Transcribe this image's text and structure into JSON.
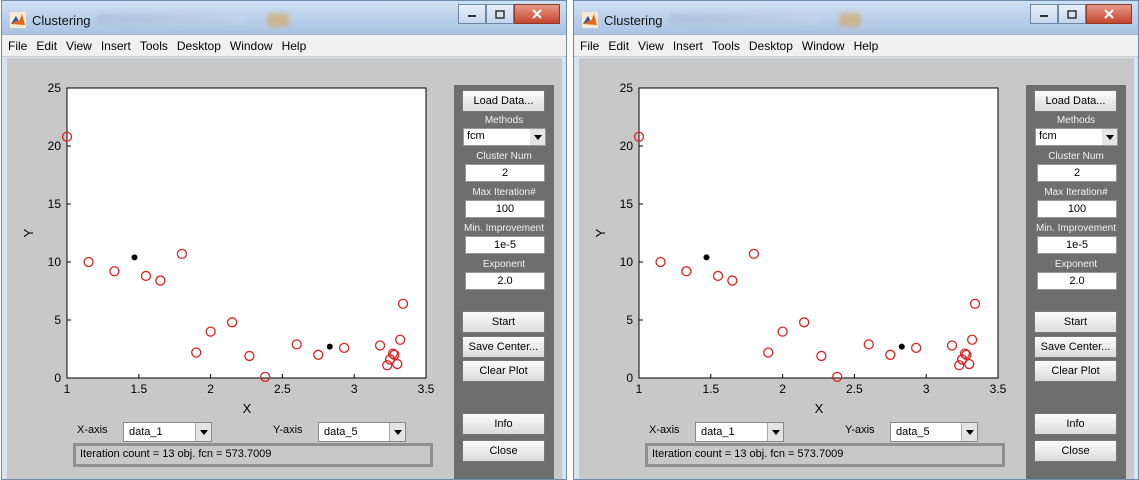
{
  "window": {
    "title": "Clustering",
    "menu": [
      "File",
      "Edit",
      "View",
      "Insert",
      "Tools",
      "Desktop",
      "Window",
      "Help"
    ]
  },
  "plot": {
    "xlabel": "X",
    "ylabel": "Y",
    "xticks": [
      "1",
      "1.5",
      "2",
      "2.5",
      "3",
      "3.5"
    ],
    "yticks": [
      "0",
      "5",
      "10",
      "15",
      "20",
      "25"
    ]
  },
  "chart_data": {
    "type": "scatter",
    "xlim": [
      1,
      3.5
    ],
    "ylim": [
      0,
      25
    ],
    "xlabel": "X",
    "ylabel": "Y",
    "series": [
      {
        "marker": "circle-open",
        "color": "#e02020",
        "x": [
          1.0,
          1.15,
          1.33,
          1.55,
          1.65,
          1.8,
          1.9,
          2.0,
          2.15,
          2.27,
          2.38,
          2.6,
          2.75,
          2.93,
          3.18,
          3.23,
          3.25,
          3.28,
          3.3,
          3.32,
          3.27,
          3.34
        ],
        "y": [
          20.8,
          10.0,
          9.2,
          8.8,
          8.4,
          10.7,
          2.2,
          4.0,
          4.8,
          1.9,
          0.1,
          2.9,
          2.0,
          2.6,
          2.8,
          1.1,
          1.6,
          2.0,
          1.2,
          3.3,
          2.1,
          6.4
        ]
      },
      {
        "marker": "point-filled",
        "color": "#000000",
        "x": [
          1.47,
          2.83
        ],
        "y": [
          10.4,
          2.7
        ]
      }
    ]
  },
  "axes_selectors": {
    "x_label": "X-axis",
    "x_value": "data_1",
    "y_label": "Y-axis",
    "y_value": "data_5"
  },
  "status": "Iteration count = 13 obj. fcn = 573.7009",
  "panel": {
    "load_data": "Load Data...",
    "methods_label": "Methods",
    "method_value": "fcm",
    "cluster_num_label": "Cluster Num",
    "cluster_num": "2",
    "max_iter_label": "Max Iteration#",
    "max_iter": "100",
    "min_improve_label": "Min. Improvement",
    "min_improve": "1e-5",
    "exponent_label": "Exponent",
    "exponent": "2.0",
    "start": "Start",
    "save_center": "Save Center...",
    "clear_plot": "Clear Plot",
    "info": "Info",
    "close": "Close"
  }
}
